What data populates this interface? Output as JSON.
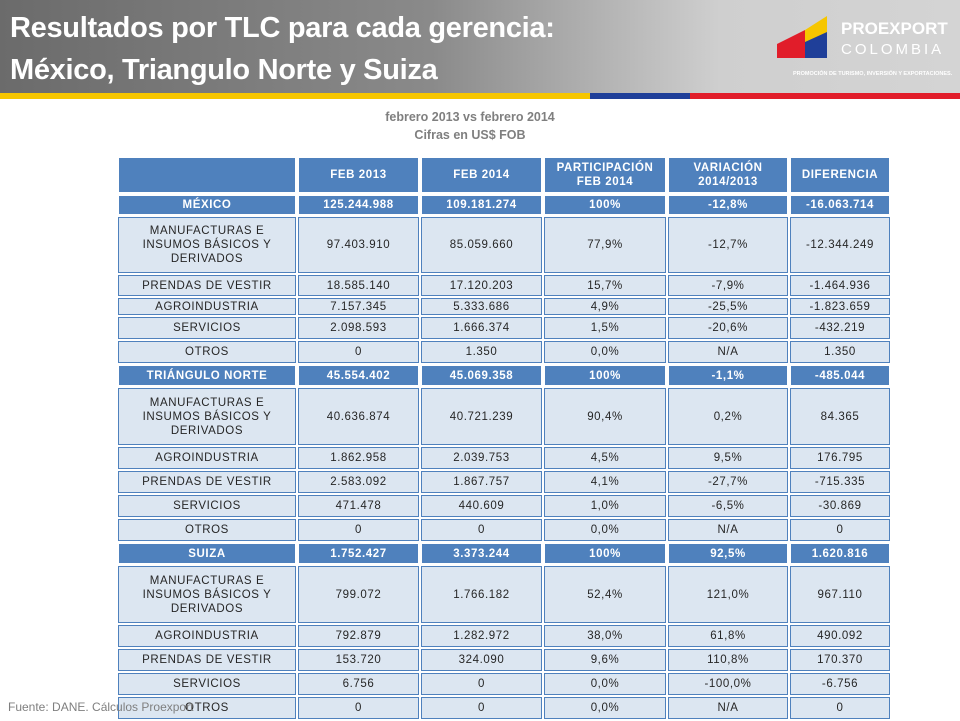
{
  "header": {
    "title_lines": [
      "Resultados por TLC para cada gerencia:",
      "México, Triangulo Norte y Suiza"
    ]
  },
  "logo": {
    "name": "PROEXPORT",
    "country": "COLOMBIA",
    "tagline": "PROMOCIÓN DE TURISMO, INVERSIÓN Y EXPORTACIONES."
  },
  "subtitle_lines": [
    "febrero 2013 vs febrero 2014",
    "Cifras en US$ FOB"
  ],
  "table": {
    "header": [
      "FEB 2013",
      "FEB 2014",
      "PARTICIPACIÓN FEB 2014",
      "VARIACIÓN 2014/2013",
      "DIFERENCIA"
    ],
    "rows": [
      [
        "MÉXICO",
        "125.244.988",
        "109.181.274",
        "100%",
        "-12,8%",
        "-16.063.714"
      ],
      [
        "MANUFACTURAS E INSUMOS BÁSICOS Y DERIVADOS",
        "97.403.910",
        "85.059.660",
        "77,9%",
        "-12,7%",
        "-12.344.249"
      ],
      [
        "PRENDAS DE VESTIR",
        "18.585.140",
        "17.120.203",
        "15,7%",
        "-7,9%",
        "-1.464.936"
      ],
      [
        "AGROINDUSTRIA",
        "7.157.345",
        "5.333.686",
        "4,9%",
        "-25,5%",
        "-1.823.659"
      ],
      [
        "SERVICIOS",
        "2.098.593",
        "1.666.374",
        "1,5%",
        "-20,6%",
        "-432.219"
      ],
      [
        "OTROS",
        "0",
        "1.350",
        "0,0%",
        "N/A",
        "1.350"
      ],
      [
        "TRIÁNGULO NORTE",
        "45.554.402",
        "45.069.358",
        "100%",
        "-1,1%",
        "-485.044"
      ],
      [
        "MANUFACTURAS E INSUMOS BÁSICOS Y DERIVADOS",
        "40.636.874",
        "40.721.239",
        "90,4%",
        "0,2%",
        "84.365"
      ],
      [
        "AGROINDUSTRIA",
        "1.862.958",
        "2.039.753",
        "4,5%",
        "9,5%",
        "176.795"
      ],
      [
        "PRENDAS DE VESTIR",
        "2.583.092",
        "1.867.757",
        "4,1%",
        "-27,7%",
        "-715.335"
      ],
      [
        "SERVICIOS",
        "471.478",
        "440.609",
        "1,0%",
        "-6,5%",
        "-30.869"
      ],
      [
        "OTROS",
        "0",
        "0",
        "0,0%",
        "N/A",
        "0"
      ],
      [
        "SUIZA",
        "1.752.427",
        "3.373.244",
        "100%",
        "92,5%",
        "1.620.816"
      ],
      [
        "MANUFACTURAS E INSUMOS BÁSICOS Y DERIVADOS",
        "799.072",
        "1.766.182",
        "52,4%",
        "121,0%",
        "967.110"
      ],
      [
        "AGROINDUSTRIA",
        "792.879",
        "1.282.972",
        "38,0%",
        "61,8%",
        "490.092"
      ],
      [
        "PRENDAS DE VESTIR",
        "153.720",
        "324.090",
        "9,6%",
        "110,8%",
        "170.370"
      ],
      [
        "SERVICIOS",
        "6.756",
        "0",
        "0,0%",
        "-100,0%",
        "-6.756"
      ],
      [
        "OTROS",
        "0",
        "0",
        "0,0%",
        "N/A",
        "0"
      ]
    ]
  },
  "footer": "Fuente: DANE. Cálculos Proexport"
}
